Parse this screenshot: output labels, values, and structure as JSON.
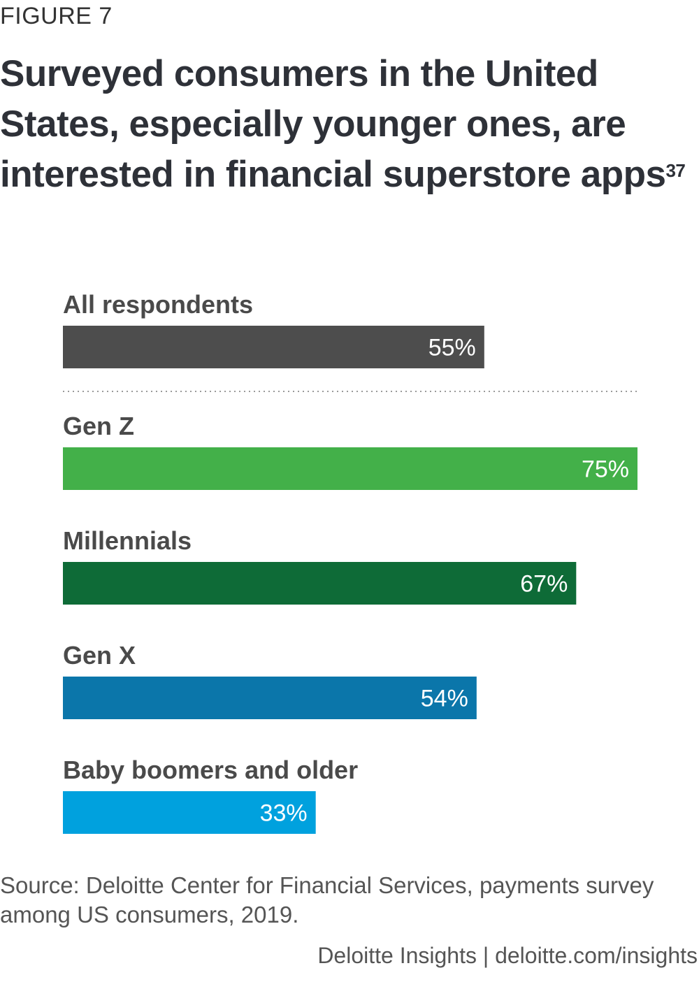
{
  "figure_label": "FIGURE 7",
  "title": "Surveyed consumers in the United States, especially younger ones, are interested in financial superstore apps",
  "title_footnote": "37",
  "source": "Source: Deloitte Center for Financial Services, payments survey among US consumers, 2019.",
  "footer": {
    "brand": "Deloitte Insights",
    "separator": "|",
    "url": "deloitte.com/insights"
  },
  "chart_data": {
    "type": "bar",
    "orientation": "horizontal",
    "categories": [
      "All respondents",
      "Gen Z",
      "Millennials",
      "Gen X",
      "Baby boomers and older"
    ],
    "values": [
      55,
      75,
      67,
      54,
      33
    ],
    "value_labels": [
      "55%",
      "75%",
      "67%",
      "54%",
      "33%"
    ],
    "colors": [
      "#4d4d4d",
      "#43b049",
      "#0e6b37",
      "#0b76aa",
      "#00a1de"
    ],
    "xlim": [
      0,
      75
    ],
    "grid": false,
    "divider_after_first": true,
    "title": "",
    "xlabel": "",
    "ylabel": ""
  }
}
